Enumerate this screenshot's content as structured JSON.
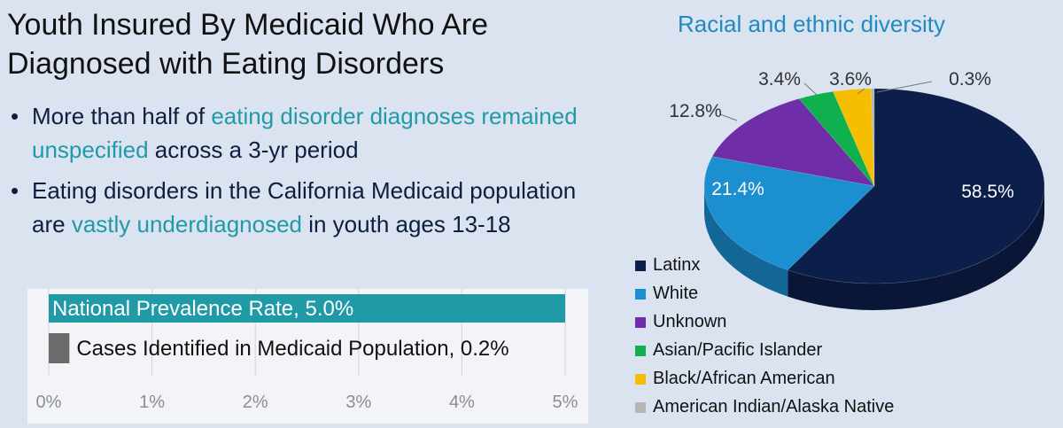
{
  "title": {
    "line1": "Youth Insured By Medicaid Who Are",
    "line2": "Diagnosed with Eating Disorders"
  },
  "bullets": [
    {
      "part1": "More than half of ",
      "highlight": "eating disorder diagnoses remained unspecified",
      "part2": " across a 3-yr period"
    },
    {
      "part1": "Eating disorders in the California Medicaid population are ",
      "highlight": "vastly underdiagnosed",
      "part2": " in youth ages 13-18"
    }
  ],
  "colors": {
    "teal": "#1f9aa6",
    "gray": "#6b6b6b",
    "latinx": "#0c1f4a",
    "white": "#1b8fd0",
    "unknown": "#6f2da8",
    "asian": "#10b04e",
    "black": "#f6be00",
    "native": "#b5b5b5"
  },
  "chart_data": [
    {
      "type": "bar",
      "orientation": "horizontal",
      "categories": [
        "National Prevalence Rate",
        "Cases Identified in Medicaid Population"
      ],
      "values": [
        5.0,
        0.2
      ],
      "data_labels": [
        "National Prevalence Rate, 5.0%",
        "Cases Identified in Medicaid Population, 0.2%"
      ],
      "xlim": [
        0,
        5
      ],
      "x_ticks": [
        "0%",
        "1%",
        "2%",
        "3%",
        "4%",
        "5%"
      ],
      "grid": true
    },
    {
      "type": "pie",
      "title": "Racial and ethnic diversity",
      "labels": [
        "Latinx",
        "White",
        "Unknown",
        "Asian/Pacific Islander",
        "Black/African American",
        "American Indian/Alaska Native"
      ],
      "values": [
        58.5,
        21.4,
        12.8,
        3.4,
        3.6,
        0.3
      ],
      "data_labels": [
        "58.5%",
        "21.4%",
        "12.8%",
        "3.4%",
        "3.6%",
        "0.3%"
      ],
      "legend": "bottom-left"
    }
  ]
}
